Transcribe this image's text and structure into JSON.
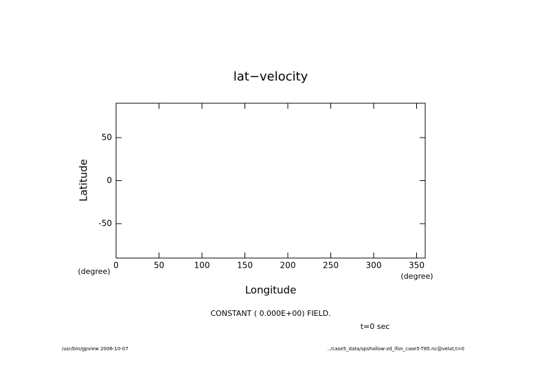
{
  "chart_data": {
    "type": "contour",
    "title": "lat−velocity",
    "xlabel": "Longitude",
    "ylabel": "Latitude",
    "xunit": "(degree)",
    "yunit": "(degree)",
    "xlim": [
      0,
      360
    ],
    "ylim": [
      -90,
      90
    ],
    "xticks": [
      0,
      50,
      100,
      150,
      200,
      250,
      300,
      350
    ],
    "yticks": [
      -50,
      0,
      50
    ],
    "annotations": [
      "CONSTANT ( 0.000E+00) FIELD.",
      "t=0 sec"
    ],
    "footer": [
      "/usr/bin/gpview  2006-10-07",
      "../case5_data/spshallow-zd_lfsn_case5-T85.nc@velat,t=0"
    ]
  }
}
